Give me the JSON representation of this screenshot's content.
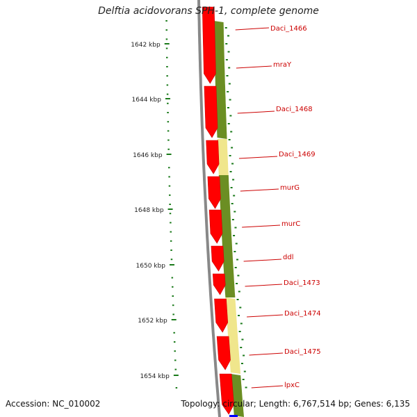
{
  "title": "Delftia acidovorans SPH-1, complete genome",
  "footer": {
    "accession": "Accession: NC_010002",
    "topology": "Topology: circular; Length: 6,767,514 bp; Genes: 6,135"
  },
  "colors": {
    "gene_red": "#ff0000",
    "band_green": "#6b8e23",
    "band_yellow": "#f0e68c",
    "backbone_gray": "#888888",
    "label_red": "#cc0000",
    "tick_green": "#1a7a1a"
  },
  "scale": {
    "ticks": [
      {
        "label": "1642 kbp"
      },
      {
        "label": "1644 kbp"
      },
      {
        "label": "1646 kbp"
      },
      {
        "label": "1648 kbp"
      },
      {
        "label": "1650 kbp"
      },
      {
        "label": "1652 kbp"
      },
      {
        "label": "1654 kbp"
      }
    ]
  },
  "genes": [
    {
      "name": "Daci_1466"
    },
    {
      "name": "mraY"
    },
    {
      "name": "Daci_1468"
    },
    {
      "name": "Daci_1469"
    },
    {
      "name": "murG"
    },
    {
      "name": "murC"
    },
    {
      "name": "ddl"
    },
    {
      "name": "Daci_1473"
    },
    {
      "name": "Daci_1474"
    },
    {
      "name": "Daci_1475"
    },
    {
      "name": "lpxC"
    }
  ]
}
